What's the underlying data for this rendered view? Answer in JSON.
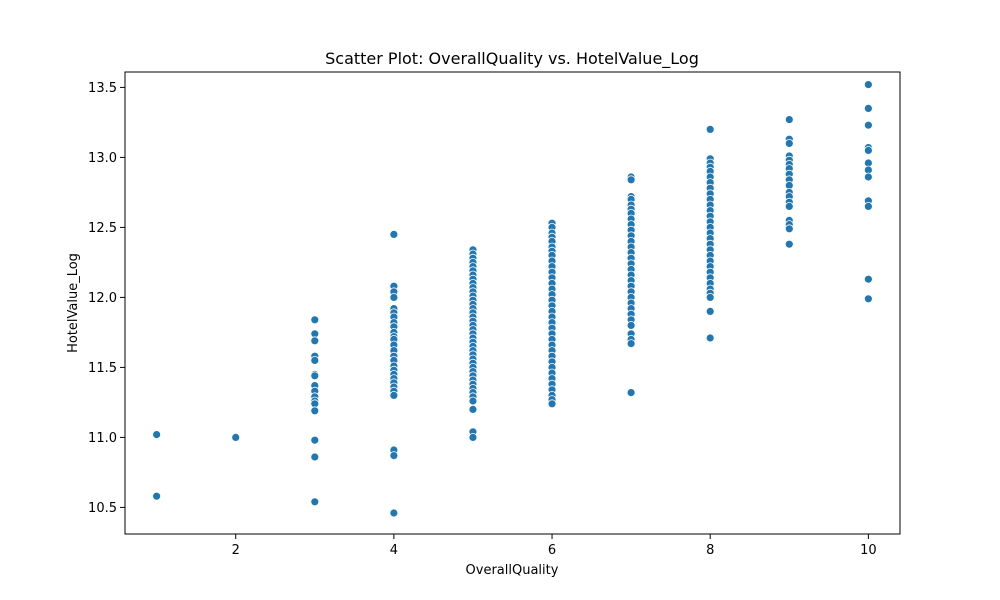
{
  "chart_data": {
    "type": "scatter",
    "title": "Scatter Plot: OverallQuality vs. HotelValue_Log",
    "xlabel": "OverallQuality",
    "ylabel": "HotelValue_Log",
    "xlim": [
      0.6,
      10.4
    ],
    "ylim": [
      10.31,
      13.61
    ],
    "x_ticks": [
      2,
      4,
      6,
      8,
      10
    ],
    "y_ticks": [
      10.5,
      11.0,
      11.5,
      12.0,
      12.5,
      13.0,
      13.5
    ],
    "grid": false,
    "point_color": "#1f77b4",
    "groups": [
      {
        "x": 1,
        "y": [
          11.02,
          10.58
        ]
      },
      {
        "x": 2,
        "y": [
          11.0
        ]
      },
      {
        "x": 3,
        "y": [
          11.84,
          11.74,
          11.69,
          11.58,
          11.55,
          11.45,
          11.44,
          11.37,
          11.33,
          11.29,
          11.26,
          11.24,
          11.19,
          10.98,
          10.86,
          10.54
        ]
      },
      {
        "x": 4,
        "y": [
          12.45,
          12.08,
          12.04,
          12.0,
          11.92,
          11.89,
          11.86,
          11.82,
          11.79,
          11.75,
          11.72,
          11.7,
          11.66,
          11.62,
          11.58,
          11.55,
          11.51,
          11.48,
          11.45,
          11.42,
          11.39,
          11.36,
          11.33,
          11.3,
          10.91,
          10.87,
          10.46
        ]
      },
      {
        "x": 5,
        "y": [
          12.34,
          12.31,
          12.28,
          12.25,
          12.22,
          12.19,
          12.16,
          12.13,
          12.1,
          12.07,
          12.04,
          12.01,
          11.98,
          11.95,
          11.92,
          11.89,
          11.86,
          11.83,
          11.8,
          11.77,
          11.74,
          11.71,
          11.68,
          11.65,
          11.62,
          11.59,
          11.56,
          11.53,
          11.5,
          11.47,
          11.44,
          11.41,
          11.38,
          11.35,
          11.32,
          11.29,
          11.26,
          11.2,
          11.04,
          11.0
        ]
      },
      {
        "x": 6,
        "y": [
          12.53,
          12.5,
          12.46,
          12.43,
          12.4,
          12.36,
          12.33,
          12.3,
          12.26,
          12.22,
          12.18,
          12.14,
          12.1,
          12.06,
          12.02,
          11.98,
          11.94,
          11.9,
          11.86,
          11.82,
          11.78,
          11.74,
          11.7,
          11.66,
          11.62,
          11.58,
          11.54,
          11.5,
          11.46,
          11.42,
          11.38,
          11.34,
          11.3,
          11.27,
          11.24
        ]
      },
      {
        "x": 7,
        "y": [
          12.86,
          12.84,
          12.72,
          12.7,
          12.66,
          12.63,
          12.6,
          12.56,
          12.52,
          12.48,
          12.44,
          12.4,
          12.36,
          12.32,
          12.28,
          12.24,
          12.2,
          12.16,
          12.12,
          12.08,
          12.04,
          12.0,
          11.96,
          11.92,
          11.88,
          11.84,
          11.8,
          11.74,
          11.7,
          11.67,
          11.32
        ]
      },
      {
        "x": 8,
        "y": [
          13.2,
          12.99,
          12.96,
          12.93,
          12.9,
          12.86,
          12.82,
          12.78,
          12.74,
          12.7,
          12.66,
          12.62,
          12.58,
          12.54,
          12.5,
          12.46,
          12.42,
          12.38,
          12.34,
          12.3,
          12.26,
          12.22,
          12.18,
          12.14,
          12.1,
          12.06,
          12.03,
          12.0,
          11.9,
          11.71
        ]
      },
      {
        "x": 9,
        "y": [
          13.27,
          13.13,
          13.1,
          13.01,
          12.98,
          12.95,
          12.92,
          12.88,
          12.84,
          12.8,
          12.75,
          12.72,
          12.68,
          12.65,
          12.55,
          12.52,
          12.49,
          12.38
        ]
      },
      {
        "x": 10,
        "y": [
          13.52,
          13.35,
          13.23,
          13.07,
          13.05,
          12.96,
          12.91,
          12.86,
          12.69,
          12.65,
          12.13,
          11.99
        ]
      }
    ]
  }
}
